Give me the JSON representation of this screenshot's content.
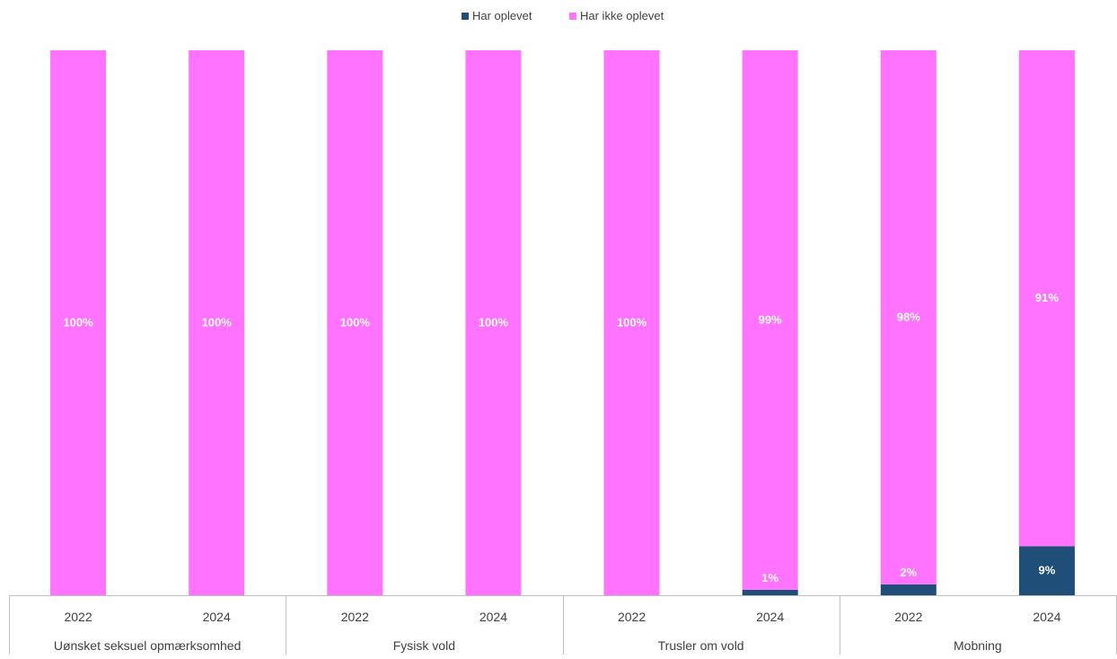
{
  "chart_data": {
    "type": "bar",
    "stacked": true,
    "percent_stacked": true,
    "legend_position": "top",
    "grid": false,
    "ylim": [
      0,
      100
    ],
    "colors": {
      "Har oplevet": "#1f4e79",
      "Har ikke oplevet": "#ff73ff"
    },
    "groups": [
      "Uønsket seksuel opmærksomhed",
      "Fysisk vold",
      "Trusler om vold",
      "Mobning"
    ],
    "categories": [
      {
        "group": "Uønsket seksuel opmærksomhed",
        "label": "2022"
      },
      {
        "group": "Uønsket seksuel opmærksomhed",
        "label": "2024"
      },
      {
        "group": "Fysisk vold",
        "label": "2022"
      },
      {
        "group": "Fysisk vold",
        "label": "2024"
      },
      {
        "group": "Trusler om vold",
        "label": "2022"
      },
      {
        "group": "Trusler om vold",
        "label": "2024"
      },
      {
        "group": "Mobning",
        "label": "2022"
      },
      {
        "group": "Mobning",
        "label": "2024"
      }
    ],
    "series": [
      {
        "name": "Har oplevet",
        "color": "#1f4e79",
        "values": [
          0,
          0,
          0,
          0,
          0,
          1,
          2,
          9
        ],
        "labels": [
          "",
          "",
          "",
          "",
          "",
          "1%",
          "2%",
          "9%"
        ]
      },
      {
        "name": "Har ikke oplevet",
        "color": "#ff73ff",
        "values": [
          100,
          100,
          100,
          100,
          100,
          99,
          98,
          91
        ],
        "labels": [
          "100%",
          "100%",
          "100%",
          "100%",
          "100%",
          "99%",
          "98%",
          "91%"
        ]
      }
    ]
  }
}
